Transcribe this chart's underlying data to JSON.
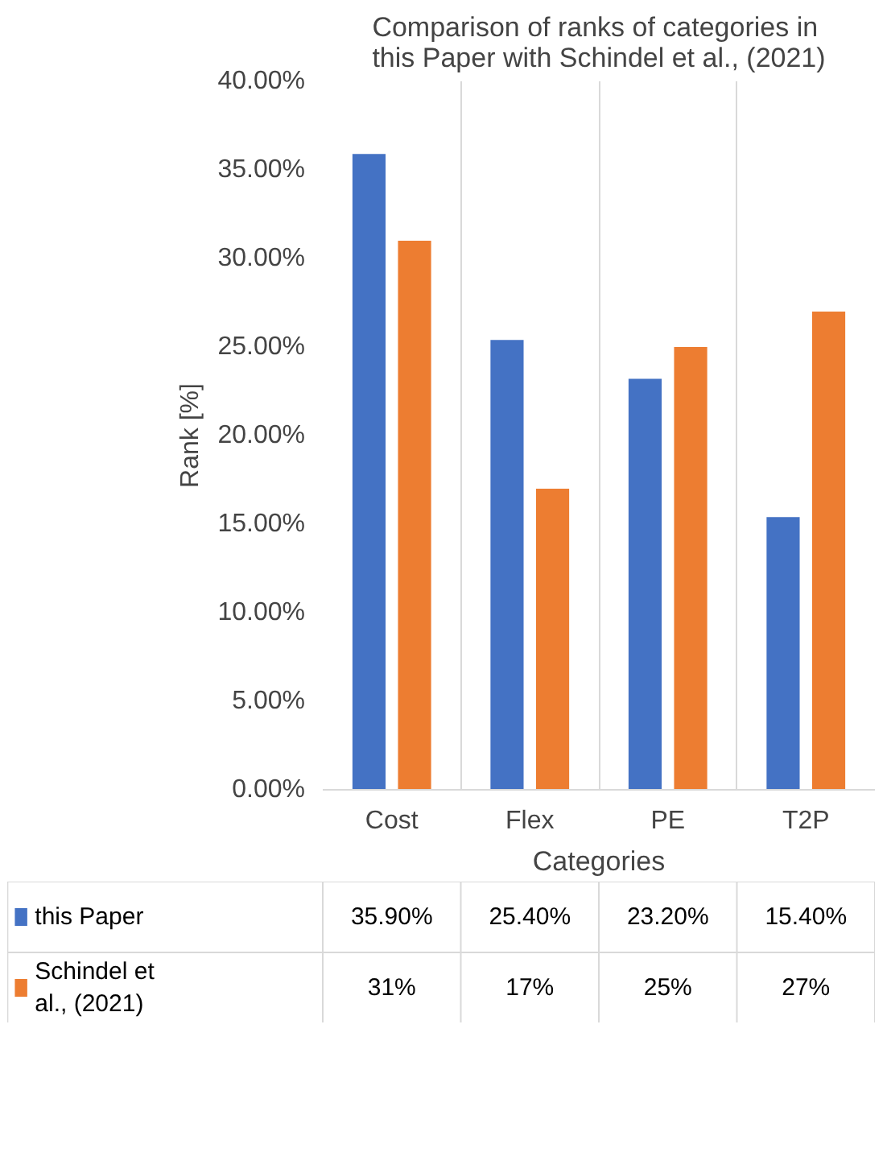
{
  "chart_data": {
    "type": "bar",
    "title": "Comparison of ranks of categories in this Paper with Schindel et al., (2021)",
    "xlabel": "Categories",
    "ylabel": "Rank [%]",
    "categories": [
      "Cost",
      "Flex",
      "PE",
      "T2P"
    ],
    "series": [
      {
        "name": "this Paper",
        "color": "#4472c4",
        "values": [
          35.9,
          25.4,
          23.2,
          15.4
        ],
        "value_labels": [
          "35.90%",
          "25.40%",
          "23.20%",
          "15.40%"
        ]
      },
      {
        "name": "Schindel et al., (2021)",
        "color": "#ed7d31",
        "values": [
          31,
          17,
          25,
          27
        ],
        "value_labels": [
          "31%",
          "17%",
          "25%",
          "27%"
        ]
      }
    ],
    "ylim": [
      0,
      40
    ],
    "yticks": [
      {
        "value": 0,
        "label": "0.00%"
      },
      {
        "value": 5,
        "label": "5.00%"
      },
      {
        "value": 10,
        "label": "10.00%"
      },
      {
        "value": 15,
        "label": "15.00%"
      },
      {
        "value": 20,
        "label": "20.00%"
      },
      {
        "value": 25,
        "label": "25.00%"
      },
      {
        "value": 30,
        "label": "30.00%"
      },
      {
        "value": 35,
        "label": "35.00%"
      },
      {
        "value": 40,
        "label": "40.00%"
      }
    ],
    "grid": "x",
    "legend": "bottom"
  }
}
